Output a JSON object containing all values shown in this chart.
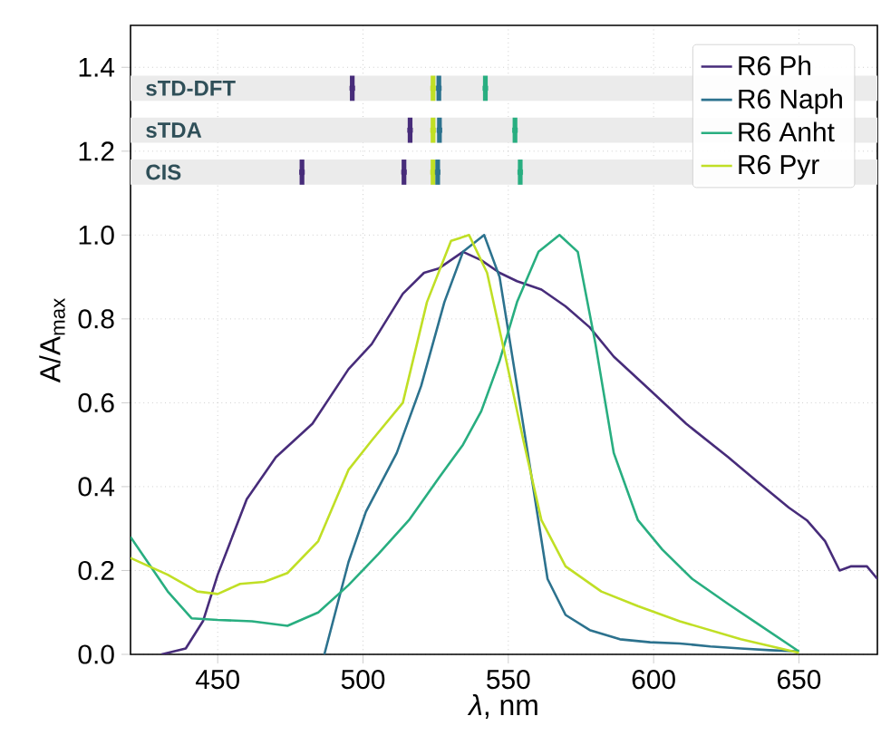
{
  "chart_data": {
    "type": "line",
    "xlabel": "*λ*, nm",
    "ylabel": "A/A$_{max}$",
    "xlim": [
      420,
      677
    ],
    "ylim": [
      0,
      1.5
    ],
    "xticks": [
      450,
      500,
      550,
      600,
      650
    ],
    "yticks": [
      {
        "value": 0,
        "label": "0.0"
      },
      {
        "value": 0.2,
        "label": "0.2"
      },
      {
        "value": 0.4,
        "label": "0.4"
      },
      {
        "value": 0.6,
        "label": "0.6"
      },
      {
        "value": 0.8,
        "label": "0.8"
      },
      {
        "value": 1.0,
        "label": "1.0"
      },
      {
        "value": 1.2,
        "label": "1.2"
      },
      {
        "value": 1.4,
        "label": "1.4"
      }
    ],
    "grid": true,
    "legend": "top right",
    "bands": [
      {
        "axis": "y",
        "from": 1.32,
        "to": 1.38,
        "label": "sTD-DFT",
        "color": "#ebebeb"
      },
      {
        "axis": "y",
        "from": 1.22,
        "to": 1.28,
        "label": "sTDA",
        "color": "#ebebeb"
      },
      {
        "axis": "y",
        "from": 1.12,
        "to": 1.18,
        "label": "CIS",
        "color": "#ebebeb"
      }
    ],
    "series": [
      {
        "name": "R6 Ph",
        "color": "#472c7a",
        "x": [
          430.7,
          439,
          445,
          450,
          460,
          470,
          482.6,
          495,
          503,
          513.7,
          521,
          526,
          534.4,
          540.7,
          547,
          553,
          561.4,
          569.7,
          578,
          586.3,
          598.8,
          611.2,
          625.7,
          636,
          646.5,
          652.7,
          659,
          664,
          668,
          673.4,
          677
        ],
        "values": [
          0,
          0.014,
          0.08,
          0.19,
          0.37,
          0.47,
          0.55,
          0.68,
          0.74,
          0.86,
          0.91,
          0.92,
          0.96,
          0.94,
          0.91,
          0.89,
          0.87,
          0.83,
          0.78,
          0.71,
          0.63,
          0.55,
          0.47,
          0.41,
          0.35,
          0.32,
          0.27,
          0.2,
          0.21,
          0.21,
          0.18
        ]
      },
      {
        "name": "R6 Naph",
        "color": "#2c728e",
        "x": [
          486.7,
          495,
          501,
          511.6,
          520,
          528,
          534.4,
          541.7,
          547,
          553,
          558.3,
          563.5,
          569.7,
          578,
          588.4,
          598.8,
          609,
          619.5,
          630,
          640,
          650
        ],
        "values": [
          0,
          0.22,
          0.34,
          0.48,
          0.64,
          0.84,
          0.96,
          1.0,
          0.9,
          0.64,
          0.41,
          0.18,
          0.094,
          0.058,
          0.036,
          0.029,
          0.026,
          0.019,
          0.014,
          0.01,
          0.007
        ]
      },
      {
        "name": "R6 Anht",
        "color": "#28ae80",
        "x": [
          420,
          432.8,
          441,
          450,
          461.8,
          474,
          484.6,
          495,
          505.4,
          515.8,
          526,
          534.4,
          540.7,
          547,
          553,
          560.4,
          567.6,
          573.9,
          580,
          586.3,
          594.6,
          603,
          613.3,
          625.7,
          636,
          650
        ],
        "values": [
          0.28,
          0.15,
          0.086,
          0.082,
          0.079,
          0.068,
          0.1,
          0.165,
          0.24,
          0.32,
          0.42,
          0.5,
          0.58,
          0.7,
          0.84,
          0.96,
          1.0,
          0.96,
          0.74,
          0.48,
          0.32,
          0.25,
          0.18,
          0.12,
          0.072,
          0.007
        ]
      },
      {
        "name": "R6 Pyr",
        "color": "#c0df25",
        "x": [
          420,
          432.8,
          443,
          450,
          457.7,
          466,
          474,
          484.6,
          495,
          503,
          513.7,
          522,
          530.3,
          536.5,
          542.7,
          549,
          555.2,
          561.4,
          569.7,
          582,
          594.6,
          609,
          630,
          650
        ],
        "values": [
          0.23,
          0.19,
          0.15,
          0.144,
          0.168,
          0.173,
          0.194,
          0.27,
          0.44,
          0.51,
          0.6,
          0.84,
          0.986,
          1.0,
          0.91,
          0.71,
          0.51,
          0.32,
          0.21,
          0.15,
          0.115,
          0.079,
          0.036,
          0.004
        ]
      },
      {
        "type": "scatter",
        "marker": "square",
        "color": "#472c7a",
        "x": [
          496.3,
          516.2,
          479,
          514.1
        ],
        "values": [
          1.35,
          1.25,
          1.15,
          1.15
        ],
        "errors": [
          0.03,
          0.03,
          0.03,
          0.03
        ]
      },
      {
        "type": "scatter",
        "marker": "square",
        "color": "#c0df25",
        "x": [
          524.1,
          524.1,
          524.1
        ],
        "values": [
          1.35,
          1.25,
          1.15
        ],
        "errors": [
          0.03,
          0.03,
          0.03
        ]
      },
      {
        "type": "scatter",
        "marker": "square",
        "color": "#2c728e",
        "x": [
          526.1,
          526.3,
          525.7
        ],
        "values": [
          1.35,
          1.25,
          1.15
        ],
        "errors": [
          0.03,
          0.03,
          0.03
        ]
      },
      {
        "type": "scatter",
        "marker": "square",
        "color": "#28ae80",
        "x": [
          542.1,
          552.3,
          554.1
        ],
        "values": [
          1.35,
          1.25,
          1.15
        ],
        "errors": [
          0.03,
          0.03,
          0.03
        ]
      }
    ]
  }
}
